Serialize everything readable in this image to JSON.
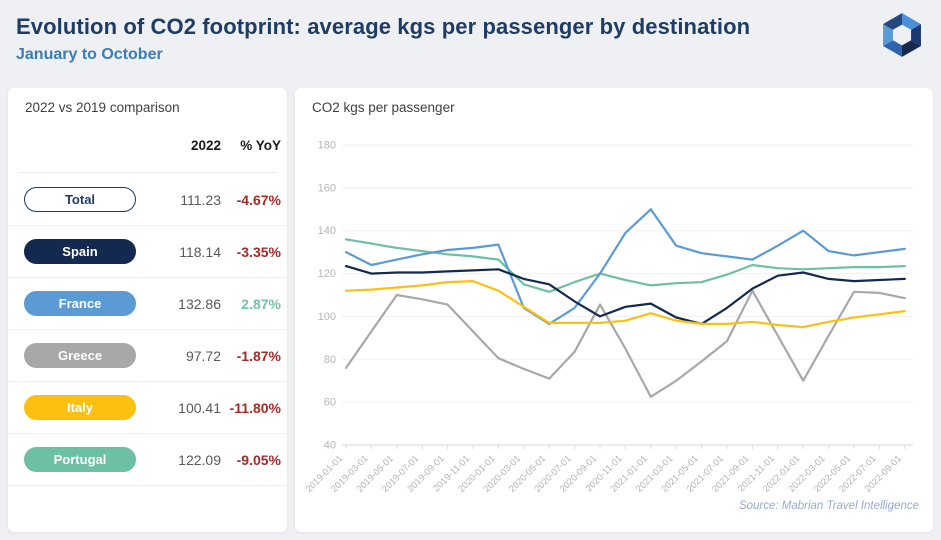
{
  "header": {
    "title": "Evolution of CO2 footprint: average kgs per passenger by destination",
    "subtitle": "January to October"
  },
  "logo": {
    "name": "mabrian-hexagon-logo",
    "facet_colors": [
      "#4a90d8",
      "#1d3a70",
      "#16294e",
      "#2f62b0",
      "#5b9bd5",
      "#23477e"
    ]
  },
  "comparison_panel": {
    "title": "2022 vs 2019 comparison",
    "columns": [
      "2022",
      "% YoY"
    ],
    "rows": [
      {
        "label": "Total",
        "value": "111.23",
        "yoy": "-4.67%",
        "pill_bg": "#ffffff",
        "pill_text": "#1e3a5f",
        "pill_border": "#1e3a5f",
        "yoy_color": "#a32b25"
      },
      {
        "label": "Spain",
        "value": "118.14",
        "yoy": "-3.35%",
        "pill_bg": "#14294f",
        "pill_text": "#ffffff",
        "yoy_color": "#a32b25"
      },
      {
        "label": "France",
        "value": "132.86",
        "yoy": "2.87%",
        "pill_bg": "#5b9bd5",
        "pill_text": "#ffffff",
        "yoy_color": "#74c4a3"
      },
      {
        "label": "Greece",
        "value": "97.72",
        "yoy": "-1.87%",
        "pill_bg": "#a8a8a8",
        "pill_text": "#ffffff",
        "yoy_color": "#a32b25"
      },
      {
        "label": "Italy",
        "value": "100.41",
        "yoy": "-11.80%",
        "pill_bg": "#fcc013",
        "pill_text": "#ffffff",
        "yoy_color": "#a32b25"
      },
      {
        "label": "Portugal",
        "value": "122.09",
        "yoy": "-9.05%",
        "pill_bg": "#6ec0a5",
        "pill_text": "#ffffff",
        "yoy_color": "#a32b25"
      }
    ]
  },
  "chart_panel": {
    "title": "CO2 kgs per passenger",
    "source": "Source: Mabrian Travel Intelligence"
  },
  "chart_data": {
    "type": "line",
    "title": "CO2 kgs per passenger",
    "xlabel": "",
    "ylabel": "",
    "ylim": [
      40,
      180
    ],
    "ytick_step": 20,
    "grid": true,
    "legend_position": "none",
    "x": [
      "2019-01-01",
      "2019-03-01",
      "2019-05-01",
      "2019-07-01",
      "2019-09-01",
      "2019-11-01",
      "2020-01-01",
      "2020-03-01",
      "2020-05-01",
      "2020-07-01",
      "2020-09-01",
      "2020-11-01",
      "2021-01-01",
      "2021-03-01",
      "2021-05-01",
      "2021-07-01",
      "2021-09-01",
      "2021-11-01",
      "2022-01-01",
      "2022-03-01",
      "2022-05-01",
      "2022-07-01",
      "2022-09-01"
    ],
    "series": [
      {
        "name": "Greece",
        "color": "#a8a8a8",
        "values": [
          76,
          93,
          110,
          108,
          105.5,
          93,
          80.5,
          75.5,
          71,
          83.5,
          105.5,
          85,
          62.5,
          70,
          79,
          88.5,
          112,
          91,
          70,
          91,
          111.5,
          111,
          108.5
        ]
      },
      {
        "name": "Portugal",
        "color": "#6ec0a5",
        "values": [
          136,
          134,
          132,
          130.5,
          129,
          128,
          126.5,
          115,
          111.5,
          116,
          120,
          117,
          114.5,
          115.5,
          116,
          119.5,
          124,
          122.5,
          122,
          122.5,
          123,
          123,
          123.5
        ]
      },
      {
        "name": "France",
        "color": "#5b9bd5",
        "values": [
          130,
          124,
          126.5,
          129,
          131,
          132,
          133.5,
          104,
          96.5,
          104,
          120,
          139,
          150,
          133,
          129.5,
          128,
          126.5,
          133,
          140,
          130.5,
          128.5,
          130,
          131.5
        ]
      },
      {
        "name": "Spain",
        "color": "#14294f",
        "values": [
          123.5,
          120,
          120.5,
          120.5,
          121,
          121.5,
          122,
          117.5,
          115,
          107,
          100,
          104.5,
          106,
          99.5,
          96.5,
          104,
          113,
          119,
          120.5,
          117.5,
          116.5,
          117,
          117.5
        ]
      },
      {
        "name": "Italy",
        "color": "#fcc013",
        "values": [
          112,
          112.5,
          113.5,
          114.5,
          116,
          116.5,
          112,
          104.5,
          97,
          97,
          97,
          98,
          101.5,
          98,
          96.5,
          96.5,
          97.5,
          96,
          95,
          97.5,
          99.5,
          101,
          102.5
        ]
      }
    ]
  }
}
